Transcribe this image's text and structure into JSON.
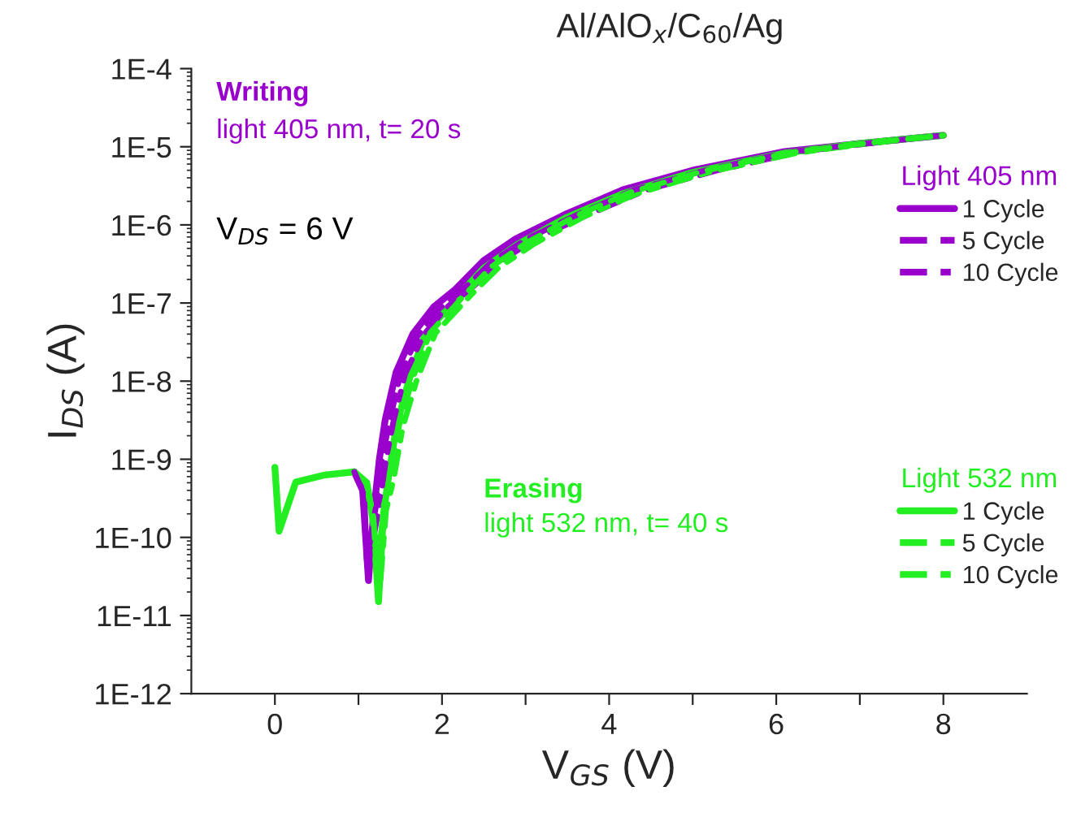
{
  "chart_data": {
    "type": "line",
    "title": "Al/AlO$_{x}$/C$_{60}$/Ag",
    "xlabel": "V$_{GS}$ (V)",
    "ylabel": "I$_{DS}$ (A)",
    "legend_title": [
      "Light 405 nm",
      "Light 532 nm"
    ],
    "annotations": [
      "Writing",
      "light 405 nm, t= 20 s",
      "V$_{DS}$ = 6 V",
      "Erasing",
      "light 532 nm, t= 40 s"
    ],
    "log": "y",
    "xlim": [
      -1,
      9
    ],
    "xticks": [
      0,
      {
        "value": 1,
        "label": null
      },
      2,
      {
        "value": 3,
        "label": null
      },
      4,
      {
        "value": 5,
        "label": null
      },
      6,
      {
        "value": 7,
        "label": null
      },
      8
    ],
    "ylim": [
      1e-12,
      0.0001
    ],
    "yticks": [
      {
        "value": 1e-12,
        "label": "1E-12"
      },
      {
        "value": 1e-11,
        "label": "1E-11"
      },
      {
        "value": 1e-10,
        "label": "1E-10"
      },
      {
        "value": 1e-09,
        "label": "1E-9"
      },
      {
        "value": 1e-08,
        "label": "1E-8"
      },
      {
        "value": 1e-07,
        "label": "1E-7"
      },
      {
        "value": 1e-06,
        "label": "1E-6"
      },
      {
        "value": 1e-05,
        "label": "1E-5"
      },
      {
        "value": 0.0001,
        "label": "1E-4"
      }
    ],
    "grid": false,
    "legend": "right",
    "marker": "none",
    "series": [
      {
        "name": "1 Cycle",
        "color": "#9900cc",
        "line_style": "solid",
        "x": [
          0.95,
          1.05,
          1.12,
          1.18,
          1.25,
          1.32,
          1.45,
          1.65,
          1.9,
          2.16,
          2.5,
          2.88,
          3.5,
          4.16,
          5,
          6.1,
          7,
          8
        ],
        "values": [
          6.9e-10,
          4e-10,
          2.8e-11,
          2e-10,
          1e-09,
          3.2e-09,
          1.3e-08,
          4e-08,
          8.9e-08,
          1.5e-07,
          3.5e-07,
          6.6e-07,
          1.4e-06,
          2.8e-06,
          5e-06,
          8.7e-06,
          1.1e-05,
          1.4e-05
        ]
      },
      {
        "name": "5 Cycle",
        "color": "#9900cc",
        "line_style": "dashed",
        "x": [
          0.95,
          1.07,
          1.1,
          1.21,
          1.29,
          1.37,
          1.5,
          1.71,
          1.97,
          2.24,
          2.6,
          3.0,
          3.65,
          4.3,
          5.15,
          6.2,
          7.05,
          8
        ],
        "values": [
          6.9e-10,
          3.5e-10,
          5e-11,
          2.5e-10,
          1.1e-09,
          3e-09,
          1.2e-08,
          3.8e-08,
          8.5e-08,
          1.45e-07,
          3.4e-07,
          6.5e-07,
          1.4e-06,
          2.8e-06,
          5e-06,
          8.7e-06,
          1.1e-05,
          1.4e-05
        ]
      },
      {
        "name": "10 Cycle",
        "color": "#9900cc",
        "line_style": "dashdot",
        "x": [
          1.05,
          1.11,
          1.24,
          1.33,
          1.42,
          1.56,
          1.78,
          2.05,
          2.33,
          2.7,
          3.1,
          3.78,
          4.45,
          5.3,
          6.3,
          7.1,
          8
        ],
        "values": [
          3.8e-10,
          4e-11,
          2.2e-10,
          1e-09,
          3.1e-09,
          1.25e-08,
          3.9e-08,
          8.7e-08,
          1.47e-07,
          3.4e-07,
          6.5e-07,
          1.4e-06,
          2.8e-06,
          5e-06,
          8.7e-06,
          1.1e-05,
          1.4e-05
        ]
      },
      {
        "name": "1 Cycle",
        "color": "#22ee22",
        "line_style": "solid",
        "x": [
          0,
          0.05,
          0.25,
          0.6,
          0.95,
          1.1,
          1.18,
          1.24,
          1.3,
          1.35,
          1.45,
          1.6,
          1.8,
          2.2,
          2.5,
          2.9,
          3.5,
          4.16,
          5,
          6.1,
          7,
          8
        ],
        "values": [
          7.9e-10,
          1.2e-10,
          5.1e-10,
          6.3e-10,
          6.9e-10,
          5e-10,
          1.5e-10,
          1.5e-11,
          2e-10,
          5e-10,
          2.5e-09,
          1e-08,
          4e-08,
          1.26e-07,
          2.8e-07,
          5.6e-07,
          1.26e-06,
          2.5e-06,
          4.7e-06,
          8.3e-06,
          1.1e-05,
          1.4e-05
        ]
      },
      {
        "name": "5 Cycle",
        "color": "#22ee22",
        "line_style": "dashed",
        "x": [
          1.1,
          1.18,
          1.22,
          1.3,
          1.38,
          1.49,
          1.65,
          1.86,
          2.28,
          2.59,
          3.0,
          3.6,
          4.25,
          5.1,
          6.15,
          7.05,
          8
        ],
        "values": [
          5e-10,
          1.8e-10,
          3e-11,
          2.5e-10,
          6e-10,
          2.8e-09,
          1.1e-08,
          4.2e-08,
          1.3e-07,
          2.9e-07,
          5.8e-07,
          1.3e-06,
          2.6e-06,
          4.8e-06,
          8.4e-06,
          1.1e-05,
          1.4e-05
        ]
      },
      {
        "name": "10 Cycle",
        "color": "#22ee22",
        "line_style": "dashdot",
        "x": [
          1.1,
          1.18,
          1.26,
          1.33,
          1.42,
          1.53,
          1.7,
          1.92,
          2.35,
          2.68,
          3.1,
          3.7,
          4.35,
          5.2,
          6.25,
          7.1,
          8
        ],
        "values": [
          5e-10,
          1.6e-10,
          2.5e-11,
          2.2e-10,
          5.5e-10,
          2.6e-09,
          1.05e-08,
          4.1e-08,
          1.28e-07,
          2.85e-07,
          5.7e-07,
          1.28e-06,
          2.55e-06,
          4.75e-06,
          8.35e-06,
          1.1e-05,
          1.4e-05
        ]
      }
    ]
  }
}
